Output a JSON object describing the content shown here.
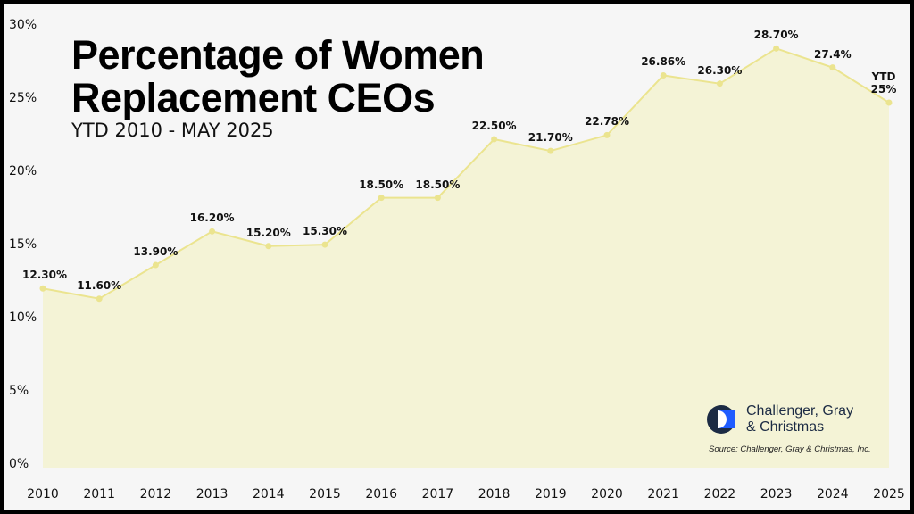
{
  "title_line1": "Percentage of Women",
  "title_line2": "Replacement CEOs",
  "subtitle": "YTD 2010 - MAY 2025",
  "brand": {
    "name_line1": "Challenger, Gray",
    "name_line2": "& Christmas",
    "dark": "#1c2b44",
    "blue": "#1f5cff"
  },
  "source": "Source: Challenger, Gray & Christmas, Inc.",
  "colors": {
    "line": "#ebe48f",
    "fill": "#f4f3d6",
    "background": "#f6f6f6"
  },
  "chart_data": {
    "type": "area",
    "title": "Percentage of Women Replacement CEOs",
    "subtitle": "YTD 2010 - MAY 2025",
    "categories": [
      "2010",
      "2011",
      "2012",
      "2013",
      "2014",
      "2015",
      "2016",
      "2017",
      "2018",
      "2019",
      "2020",
      "2021",
      "2022",
      "2023",
      "2024",
      "2025"
    ],
    "values": [
      12.3,
      11.6,
      13.9,
      16.2,
      15.2,
      15.3,
      18.5,
      18.5,
      22.5,
      21.7,
      22.78,
      26.86,
      26.3,
      28.7,
      27.4,
      25
    ],
    "data_labels": [
      "12.30%",
      "11.60%",
      "13.90%",
      "16.20%",
      "15.20%",
      "15.30%",
      "18.50%",
      "18.50%",
      "22.50%",
      "21.70%",
      "22.78%",
      "26.86%",
      "26.30%",
      "28.70%",
      "27.4%",
      "YTD 25%"
    ],
    "y_ticks": [
      "0%",
      "5%",
      "10%",
      "15%",
      "20%",
      "25%",
      "30%"
    ],
    "ylim": [
      0,
      30
    ],
    "grid": false,
    "legend": "none"
  }
}
